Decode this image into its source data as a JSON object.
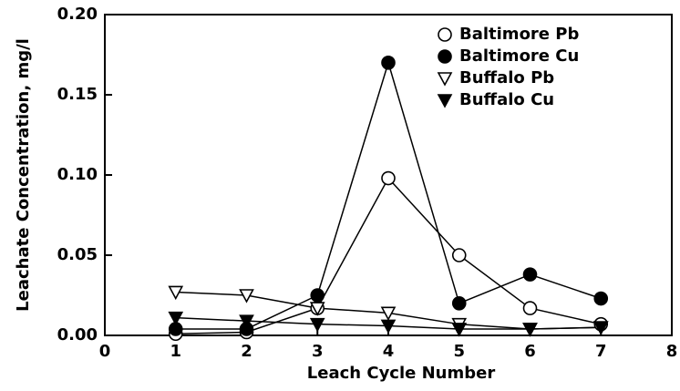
{
  "chart_data": {
    "type": "line",
    "xlabel": "Leach Cycle Number",
    "ylabel": "Leachate Concentration, mg/l",
    "x": [
      1,
      2,
      3,
      4,
      5,
      6,
      7
    ],
    "series": [
      {
        "name": "Baltimore Pb",
        "color": "#000000",
        "marker": "circle",
        "filled": false,
        "values": [
          0.001,
          0.002,
          0.017,
          0.098,
          0.05,
          0.017,
          0.007
        ]
      },
      {
        "name": "Baltimore Cu",
        "color": "#000000",
        "marker": "circle",
        "filled": true,
        "values": [
          0.004,
          0.004,
          0.025,
          0.17,
          0.02,
          0.038,
          0.023
        ]
      },
      {
        "name": "Buffalo Pb",
        "color": "#000000",
        "marker": "triangle-down",
        "filled": false,
        "values": [
          0.027,
          0.025,
          0.017,
          0.014,
          0.007,
          0.004,
          0.005
        ]
      },
      {
        "name": "Buffalo Cu",
        "color": "#000000",
        "marker": "triangle-down",
        "filled": true,
        "values": [
          0.011,
          0.009,
          0.007,
          0.006,
          0.004,
          0.004,
          0.005
        ]
      }
    ],
    "xlim": [
      0,
      8
    ],
    "xticks": [
      0,
      1,
      2,
      3,
      4,
      5,
      6,
      7,
      8
    ],
    "ylim": [
      0,
      0.2
    ],
    "yticks": [
      {
        "value": 0,
        "label": "0.00"
      },
      {
        "value": 0.05,
        "label": "0.05"
      },
      {
        "value": 0.1,
        "label": "0.10"
      },
      {
        "value": 0.15,
        "label": "0.15"
      },
      {
        "value": 0.2,
        "label": "0.20"
      }
    ],
    "legend": "upper right",
    "grid": false
  }
}
